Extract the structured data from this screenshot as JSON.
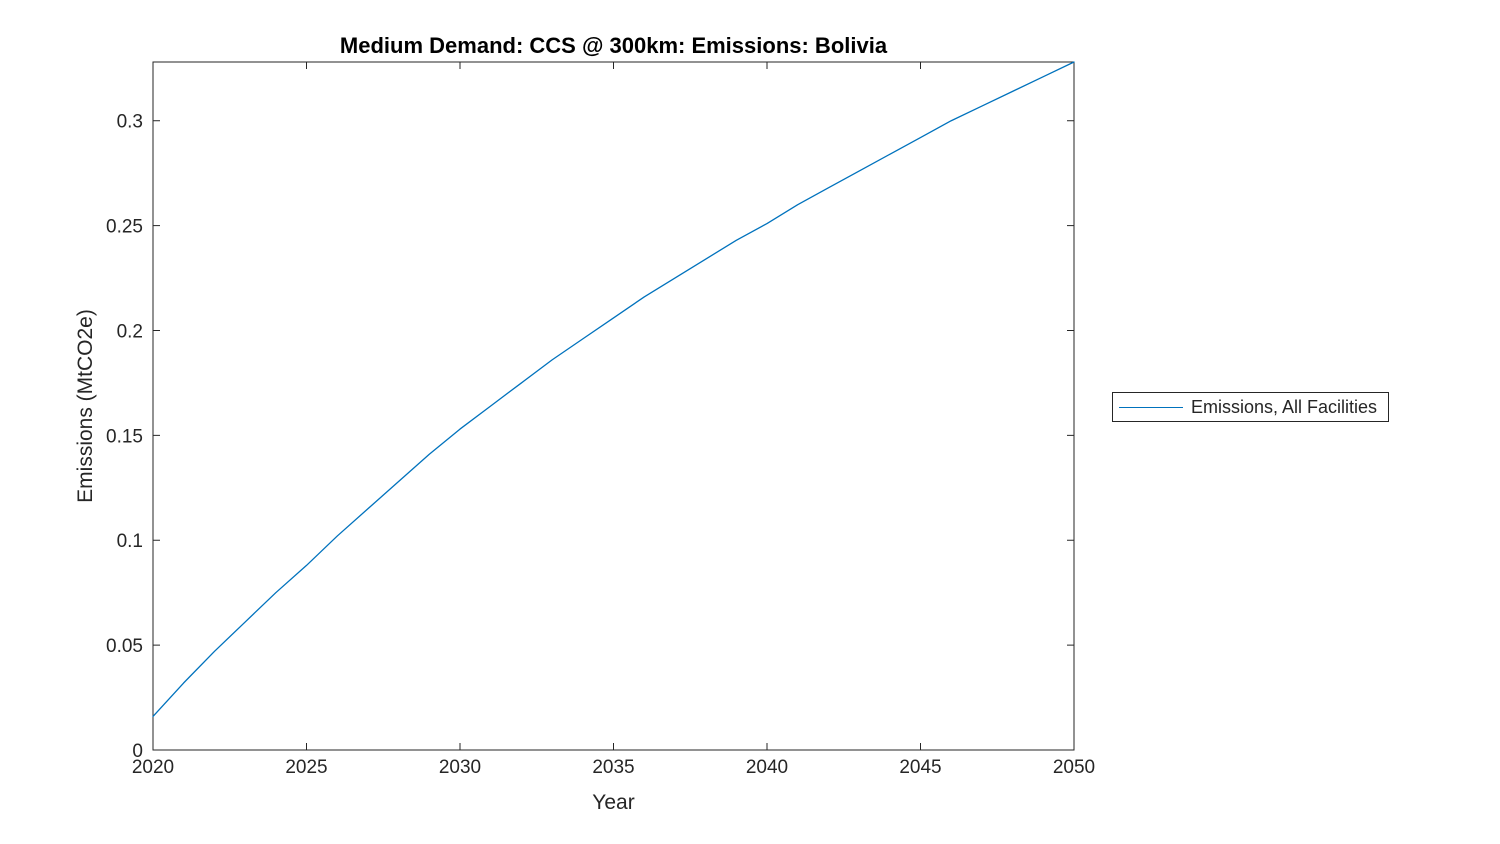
{
  "figure": {
    "background": "#ffffff"
  },
  "chart_data": {
    "type": "line",
    "title": "Medium Demand: CCS @ 300km: Emissions: Bolivia",
    "xlabel": "Year",
    "ylabel": "Emissions (MtCO2e)",
    "xlim": [
      2020,
      2050
    ],
    "ylim": [
      0,
      0.328
    ],
    "grid": false,
    "axis_color": "#262626",
    "x_ticks": [
      2020,
      2025,
      2030,
      2035,
      2040,
      2045,
      2050
    ],
    "x_tick_labels": [
      "2020",
      "2025",
      "2030",
      "2035",
      "2040",
      "2045",
      "2050"
    ],
    "y_ticks": [
      0,
      0.05,
      0.1,
      0.15,
      0.2,
      0.25,
      0.3
    ],
    "y_tick_labels": [
      "0",
      "0.05",
      "0.1",
      "0.15",
      "0.2",
      "0.25",
      "0.3"
    ],
    "legend": {
      "position": "right-outside",
      "entries": [
        {
          "label": "Emissions, All Facilities",
          "color": "#0072BD"
        }
      ]
    },
    "series": [
      {
        "name": "Emissions, All Facilities",
        "color": "#0072BD",
        "x": [
          2020,
          2021,
          2022,
          2023,
          2024,
          2025,
          2026,
          2027,
          2028,
          2029,
          2030,
          2031,
          2032,
          2033,
          2034,
          2035,
          2036,
          2037,
          2038,
          2039,
          2040,
          2041,
          2042,
          2043,
          2044,
          2045,
          2046,
          2047,
          2048,
          2049,
          2050
        ],
        "y": [
          0.016,
          0.032,
          0.047,
          0.061,
          0.075,
          0.088,
          0.102,
          0.115,
          0.128,
          0.141,
          0.153,
          0.164,
          0.175,
          0.186,
          0.196,
          0.206,
          0.216,
          0.225,
          0.234,
          0.243,
          0.251,
          0.26,
          0.268,
          0.276,
          0.284,
          0.292,
          0.3,
          0.307,
          0.314,
          0.321,
          0.328
        ]
      }
    ]
  }
}
